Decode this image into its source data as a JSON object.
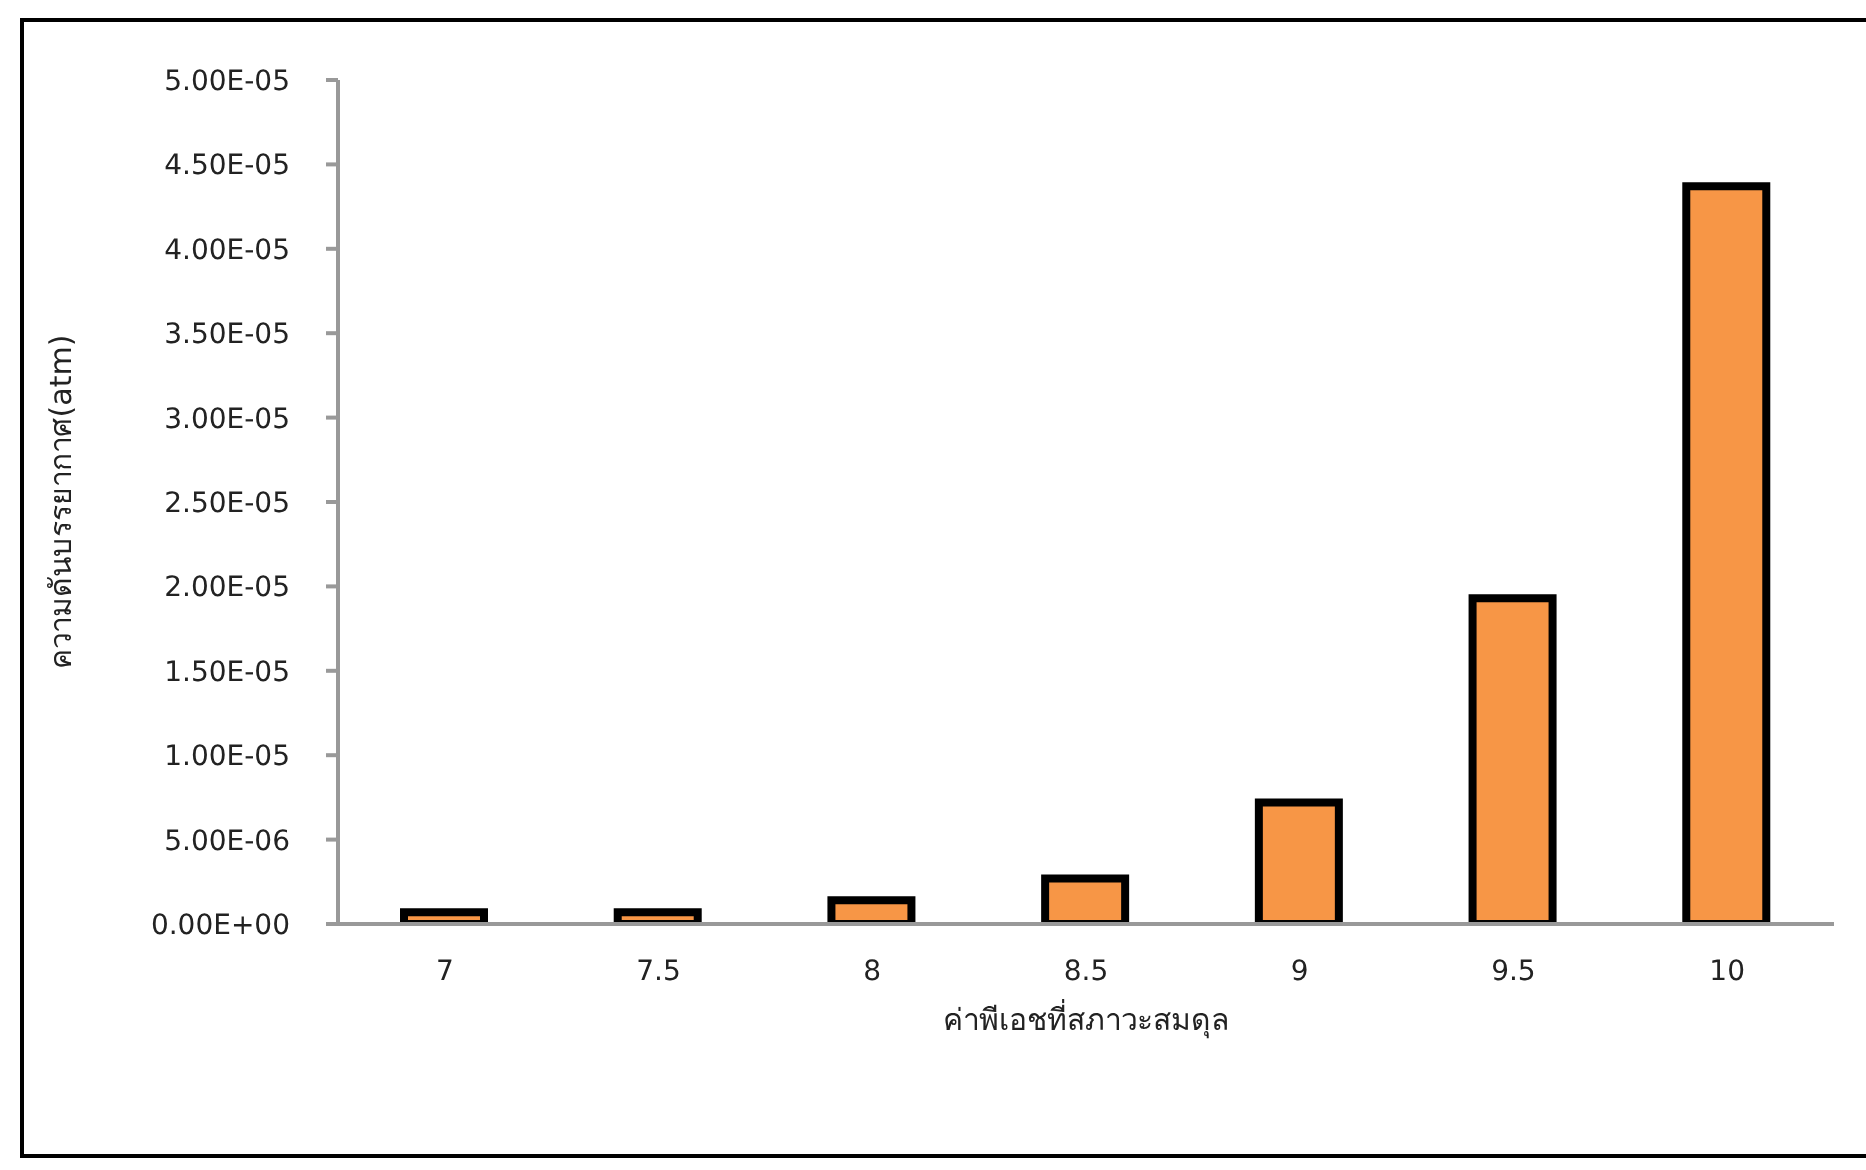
{
  "chart_data": {
    "type": "bar",
    "xlabel": "ค่าพีเอชที่สภาวะสมดุล",
    "ylabel": "ความดันบรรยากาศ(atm)",
    "categories": [
      "7",
      "7.5",
      "8",
      "8.5",
      "9",
      "9.5",
      "10"
    ],
    "values": [
      7e-07,
      7e-07,
      1.4e-06,
      2.7e-06,
      7.2e-06,
      1.93e-05,
      4.37e-05
    ],
    "color": "#f79646",
    "ylim": [
      0,
      5e-05
    ],
    "yticks": [
      {
        "value": 0,
        "label": "0.00E+00"
      },
      {
        "value": 5e-06,
        "label": "5.00E-06"
      },
      {
        "value": 1e-05,
        "label": "1.00E-05"
      },
      {
        "value": 1.5e-05,
        "label": "1.50E-05"
      },
      {
        "value": 2e-05,
        "label": "2.00E-05"
      },
      {
        "value": 2.5e-05,
        "label": "2.50E-05"
      },
      {
        "value": 3e-05,
        "label": "3.00E-05"
      },
      {
        "value": 3.5e-05,
        "label": "3.50E-05"
      },
      {
        "value": 4e-05,
        "label": "4.00E-05"
      },
      {
        "value": 4.5e-05,
        "label": "4.50E-05"
      },
      {
        "value": 5e-05,
        "label": "5.00E-05"
      }
    ],
    "grid": false,
    "legend": false
  }
}
